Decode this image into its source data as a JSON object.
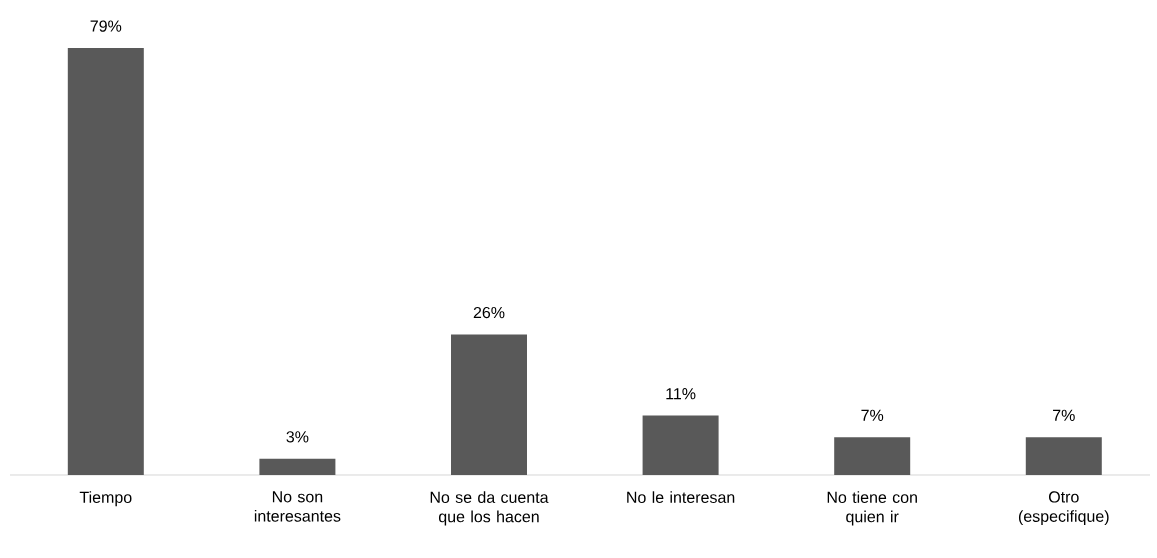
{
  "chart_data": {
    "type": "bar",
    "categories": [
      "Tiempo",
      "No son interesantes",
      "No se da cuenta que los hacen",
      "No le interesan",
      "No tiene con quien ir",
      "Otro (especifique)"
    ],
    "values": [
      79,
      3,
      26,
      11,
      7,
      7
    ],
    "value_labels": [
      "79%",
      "3%",
      "26%",
      "11%",
      "7%",
      "7%"
    ],
    "color": "#595959"
  }
}
